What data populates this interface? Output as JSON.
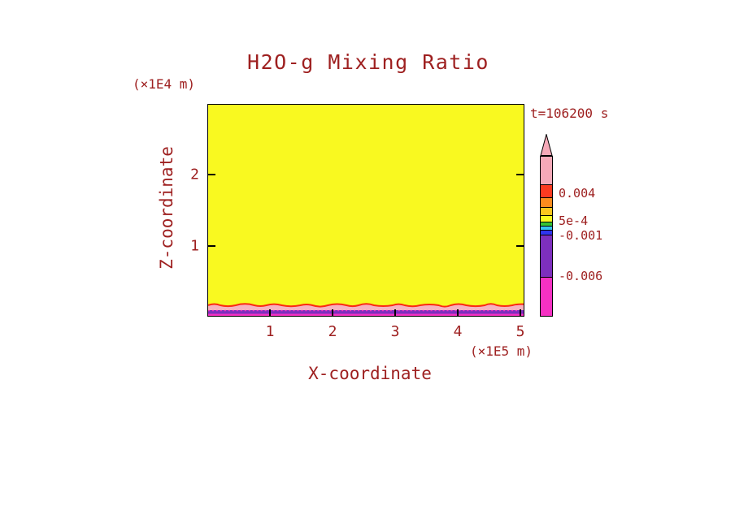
{
  "title": "H2O-g Mixing Ratio",
  "time_label": "t=106200 s",
  "axes": {
    "x_label": "X-coordinate",
    "x_units": "(×1E5 m)",
    "y_label": "Z-coordinate",
    "y_units": "(×1E4 m)",
    "x_ticks": [
      "1",
      "2",
      "3",
      "4",
      "5"
    ],
    "y_ticks": [
      "1",
      "2"
    ]
  },
  "colorbar": {
    "labels": [
      "0.004",
      "5e-4",
      "-0.001",
      "-0.006"
    ],
    "segments": [
      {
        "color": "#f5a9b8",
        "h": 34
      },
      {
        "color": "#fb3b21",
        "h": 16
      },
      {
        "color": "#fb8c1e",
        "h": 12
      },
      {
        "color": "#fcc61e",
        "h": 10
      },
      {
        "color": "#f9f920",
        "h": 8
      },
      {
        "color": "#35c435",
        "h": 5
      },
      {
        "color": "#35c4f0",
        "h": 5
      },
      {
        "color": "#2f35ef",
        "h": 6
      },
      {
        "color": "#7d2fbe",
        "h": 52
      },
      {
        "color": "#f531c3",
        "h": 48
      }
    ],
    "arrow_color": "#f5a9b8"
  },
  "colors": {
    "text": "#9e2020",
    "frame": "#000000",
    "field-yellow": "#f9f920",
    "band-pink": "#f6b2c0",
    "contour-red": "#fb2a14",
    "band-purple": "#7d2fbe",
    "band-magenta": "#f531c3",
    "cb-arrow": "#f5a9b8"
  },
  "chart_data": {
    "type": "heatmap",
    "title": "H2O-g Mixing Ratio",
    "time_annotation": "t=106200 s",
    "time_s": 106200,
    "xlabel": "X-coordinate",
    "x_units_note": "×1E5 m",
    "ylabel": "Z-coordinate",
    "y_units_note": "×1E4 m",
    "x_ticks": [
      1,
      2,
      3,
      4,
      5
    ],
    "y_ticks": [
      1,
      2
    ],
    "xlim": [
      0,
      5.07
    ],
    "ylim": [
      0,
      3.0
    ],
    "grid": false,
    "legend_position": "right vertical colorbar with arrow cap at top",
    "colorbar_labeled_levels": [
      0.004,
      0.0005,
      -0.001,
      -0.006
    ],
    "colorbar_label_strings": [
      "0.004",
      "5e-4",
      "-0.001",
      "-0.006"
    ],
    "field_description": "Nearly uniform yellow field (≈0 to 5e-4) filling the whole domain; thin layers at the bottom surface: a wavy red contour line (≈0.004 level) on top of a light-pink band (>0.004), then a purple band (≈ -0.006 to -0.001, with dotted magenta line at its top) and a magenta strip (< -0.006) at z≈0.",
    "bands_bottom_to_top": [
      {
        "z_from": 0.0,
        "z_to": 0.035,
        "color": "#f531c3",
        "value_range": "< -0.006"
      },
      {
        "z_from": 0.035,
        "z_to": 0.08,
        "color": "#7d2fbe",
        "value_range": "-0.006 to -0.001"
      },
      {
        "z_from": 0.08,
        "z_to": 0.15,
        "color": "#f6b2c0",
        "value_range": "> 0.004 (wavy red 0.004 contour at top edge)"
      },
      {
        "z_from": 0.15,
        "z_to": 3.0,
        "color": "#f9f920",
        "value_range": "≈ 0 to 5e-4"
      }
    ]
  }
}
